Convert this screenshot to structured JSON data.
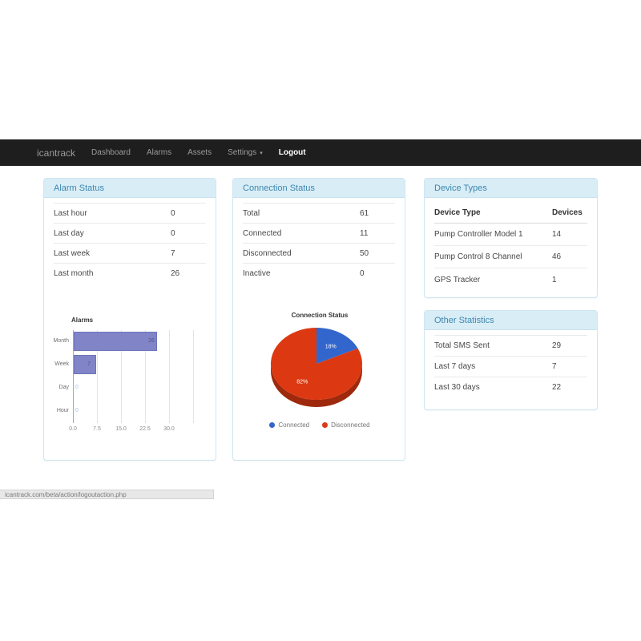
{
  "navbar": {
    "brand": "icantrack",
    "items": [
      {
        "label": "Dashboard"
      },
      {
        "label": "Alarms"
      },
      {
        "label": "Assets"
      },
      {
        "label": "Settings"
      },
      {
        "label": "Logout",
        "active": true
      }
    ]
  },
  "icons": {
    "settings_caret": "▾"
  },
  "panels": {
    "alarm_status": {
      "title": "Alarm Status",
      "rows": [
        {
          "label": "Last hour",
          "value": "0"
        },
        {
          "label": "Last day",
          "value": "0"
        },
        {
          "label": "Last week",
          "value": "7"
        },
        {
          "label": "Last month",
          "value": "26"
        }
      ]
    },
    "connection_status": {
      "title": "Connection Status",
      "rows": [
        {
          "label": "Total",
          "value": "61"
        },
        {
          "label": "Connected",
          "value": "11"
        },
        {
          "label": "Disconnected",
          "value": "50"
        },
        {
          "label": "Inactive",
          "value": "0"
        }
      ]
    },
    "device_types": {
      "title": "Device Types",
      "columns": [
        "Device Type",
        "Devices"
      ],
      "rows": [
        {
          "label": "Pump Controller Model 1",
          "value": "14"
        },
        {
          "label": "Pump Control 8 Channel",
          "value": "46"
        },
        {
          "label": "GPS Tracker",
          "value": "1"
        }
      ]
    },
    "other_statistics": {
      "title": "Other Statistics",
      "rows": [
        {
          "label": "Total SMS Sent",
          "value": "29"
        },
        {
          "label": "Last 7 days",
          "value": "7"
        },
        {
          "label": "Last 30 days",
          "value": "22"
        }
      ]
    }
  },
  "chart_data": [
    {
      "type": "bar",
      "orientation": "horizontal",
      "title": "Alarms",
      "categories": [
        "Month",
        "Week",
        "Day",
        "Hour"
      ],
      "values": [
        26,
        7,
        0,
        0
      ],
      "xticks": [
        0.0,
        7.5,
        15.0,
        22.5,
        30.0
      ],
      "xlim": [
        0,
        37.5
      ],
      "grid": true,
      "legend_position": "none",
      "bar_color": "#8185c7",
      "bar_border": "#6f74bd",
      "value_label_color": "#4f5492",
      "zero_label_color": "#a9bce8"
    },
    {
      "type": "pie",
      "title": "Connection Status",
      "labels": [
        "Connected",
        "Disconnected"
      ],
      "values": [
        11,
        50
      ],
      "percents": [
        18,
        82
      ],
      "colors": [
        "#3366cc",
        "#dc3912"
      ],
      "effect": "3d",
      "legend_position": "bottom",
      "label_color": "#ffffff"
    }
  ],
  "colors": {
    "navbar_bg": "#1e1e1e",
    "panel_heading_bg": "#d9edf7",
    "panel_heading_text": "#3c87ad",
    "panel_border": "#cfe6f1"
  },
  "statusbar": {
    "text": "icantrack.com/beta/action/logoutaction.php"
  }
}
